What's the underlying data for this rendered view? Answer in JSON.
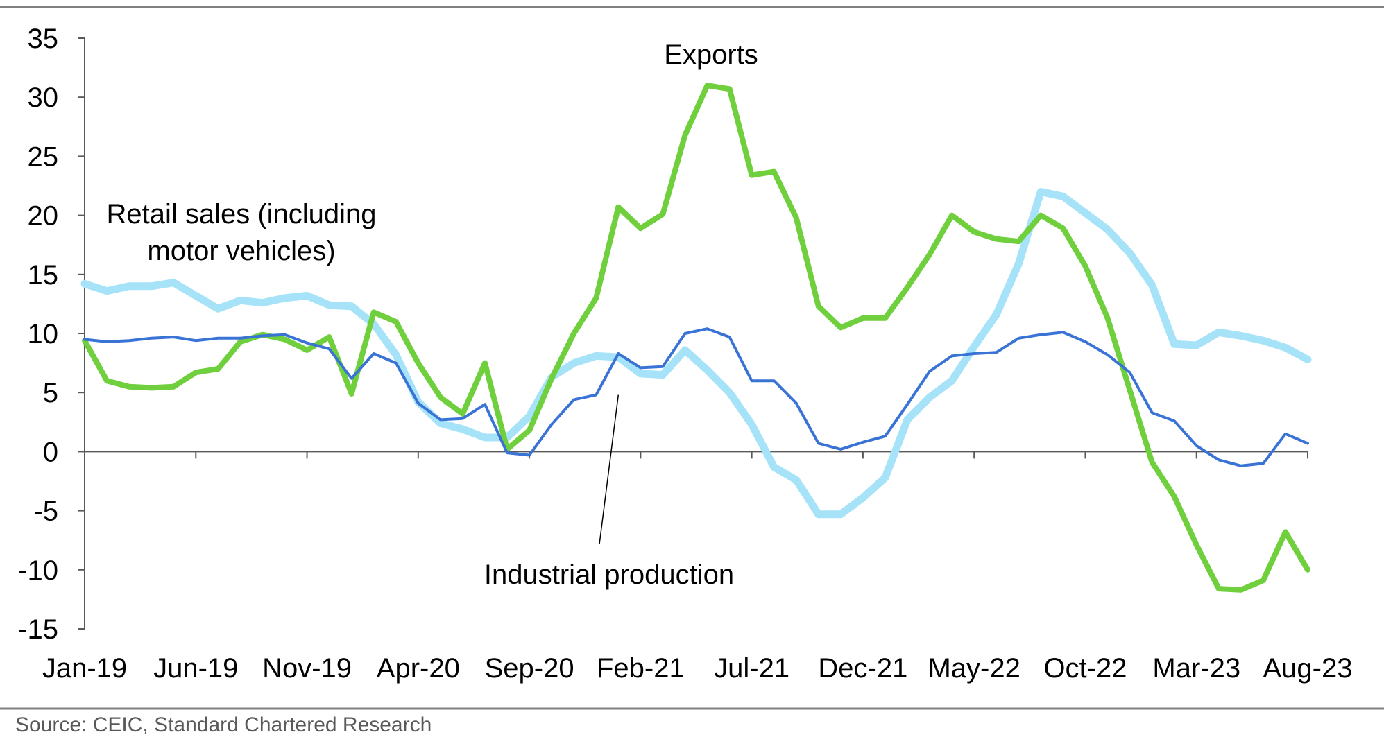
{
  "chart_data": {
    "type": "line",
    "title": "",
    "xlabel": "",
    "ylabel": "",
    "ylim": [
      -15,
      35
    ],
    "yticks": [
      35,
      30,
      25,
      20,
      15,
      10,
      5,
      0,
      -5,
      -10,
      -15
    ],
    "ytick_labels": [
      "35",
      "30",
      "25",
      "20",
      "15",
      "10",
      "5",
      "0",
      "-5",
      "-10",
      "-15"
    ],
    "xtick_labels": [
      "Jan-19",
      "Jun-19",
      "Nov-19",
      "Apr-20",
      "Sep-20",
      "Feb-21",
      "Jul-21",
      "Dec-21",
      "May-22",
      "Oct-22",
      "Mar-23",
      "Aug-23"
    ],
    "x": [
      "Jan-19",
      "Feb-19",
      "Mar-19",
      "Apr-19",
      "May-19",
      "Jun-19",
      "Jul-19",
      "Aug-19",
      "Sep-19",
      "Oct-19",
      "Nov-19",
      "Dec-19",
      "Jan-20",
      "Feb-20",
      "Mar-20",
      "Apr-20",
      "May-20",
      "Jun-20",
      "Jul-20",
      "Aug-20",
      "Sep-20",
      "Oct-20",
      "Nov-20",
      "Dec-20",
      "Jan-21",
      "Feb-21",
      "Mar-21",
      "Apr-21",
      "May-21",
      "Jun-21",
      "Jul-21",
      "Aug-21",
      "Sep-21",
      "Oct-21",
      "Nov-21",
      "Dec-21",
      "Jan-22",
      "Feb-22",
      "Mar-22",
      "Apr-22",
      "May-22",
      "Jun-22",
      "Jul-22",
      "Aug-22",
      "Sep-22",
      "Oct-22",
      "Nov-22",
      "Dec-22",
      "Jan-23",
      "Feb-23",
      "Mar-23",
      "Apr-23",
      "May-23",
      "Jun-23",
      "Jul-23",
      "Aug-23"
    ],
    "grid": false,
    "legend": "none",
    "series": [
      {
        "name": "Retail sales (including motor vehicles)",
        "color": "#a6e3f9",
        "values": [
          14.2,
          13.6,
          14.0,
          14.0,
          14.3,
          13.2,
          12.1,
          12.8,
          12.6,
          13.0,
          13.2,
          12.4,
          12.3,
          10.8,
          8.2,
          4.2,
          2.4,
          1.9,
          1.2,
          1.2,
          3.0,
          6.3,
          7.5,
          8.1,
          8.0,
          6.6,
          6.5,
          8.6,
          6.9,
          5.0,
          2.3,
          -1.3,
          -2.4,
          -5.3,
          -5.3,
          -3.9,
          -2.2,
          2.7,
          4.6,
          6.0,
          8.9,
          11.6,
          15.9,
          22.0,
          21.6,
          20.2,
          18.8,
          16.8,
          14.1,
          9.1,
          9.0,
          10.1,
          9.8,
          9.4,
          8.8,
          7.8
        ]
      },
      {
        "name": "Exports",
        "color": "#6fcf3c",
        "values": [
          9.4,
          6.0,
          5.5,
          5.4,
          5.5,
          6.7,
          7.0,
          9.3,
          9.9,
          9.5,
          8.6,
          9.7,
          4.9,
          11.8,
          11.0,
          7.5,
          4.6,
          3.2,
          7.5,
          0.2,
          1.8,
          6.2,
          10.0,
          13.0,
          20.7,
          18.9,
          20.1,
          26.8,
          31.0,
          30.7,
          23.4,
          23.7,
          19.8,
          12.3,
          10.5,
          11.3,
          11.3,
          13.9,
          16.7,
          20.0,
          18.6,
          18.0,
          17.8,
          20.0,
          18.9,
          15.7,
          11.3,
          5.2,
          -0.9,
          -3.8,
          -7.9,
          -11.6,
          -11.7,
          -10.9,
          -6.8,
          -10.0
        ]
      },
      {
        "name": "Industrial production",
        "color": "#3a73d6",
        "values": [
          9.5,
          9.3,
          9.4,
          9.6,
          9.7,
          9.4,
          9.6,
          9.6,
          9.8,
          9.9,
          9.2,
          8.7,
          6.2,
          8.3,
          7.5,
          4.1,
          2.7,
          2.8,
          4.0,
          -0.1,
          -0.3,
          2.3,
          4.4,
          4.8,
          8.3,
          7.1,
          7.2,
          10.0,
          10.4,
          9.7,
          6.0,
          6.0,
          4.1,
          0.7,
          0.2,
          0.8,
          1.3,
          4.0,
          6.8,
          8.1,
          8.3,
          8.4,
          9.6,
          9.9,
          10.1,
          9.3,
          8.2,
          6.7,
          3.3,
          2.6,
          0.5,
          -0.7,
          -1.2,
          -1.0,
          1.5,
          0.7
        ]
      }
    ],
    "annotations": [
      {
        "text_lines": [
          "Retail sales (including",
          "motor vehicles)"
        ],
        "series": "Retail sales (including motor vehicles)"
      },
      {
        "text_lines": [
          "Exports"
        ],
        "series": "Exports"
      },
      {
        "text_lines": [
          "Industrial production"
        ],
        "series": "Industrial production",
        "leader_line_to": {
          "x": "Jan-21",
          "y": 4.8
        }
      }
    ]
  },
  "source": "Source: CEIC, Standard Chartered Research"
}
